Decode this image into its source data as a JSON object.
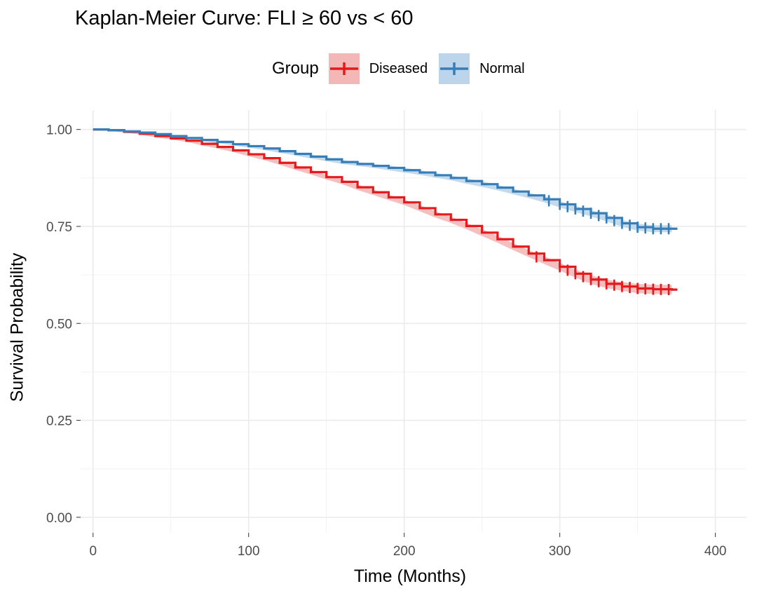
{
  "title": "Kaplan-Meier Curve: FLI ≥ 60 vs < 60",
  "legend": {
    "title": "Group",
    "items": [
      {
        "label": "Diseased",
        "color": "#E41A1C",
        "fill": "#F4B7B8"
      },
      {
        "label": "Normal",
        "color": "#377EB8",
        "fill": "#BDD5EA"
      }
    ]
  },
  "chart_data": {
    "type": "line",
    "subtype": "kaplan-meier step curve with confidence band",
    "xlabel": "Time (Months)",
    "ylabel": "Survival Probability",
    "xlim": [
      -8,
      420
    ],
    "ylim": [
      -0.04,
      1.05
    ],
    "x_ticks": [
      0,
      100,
      200,
      300,
      400
    ],
    "y_ticks": [
      0.0,
      0.25,
      0.5,
      0.75,
      1.0
    ],
    "x_tick_labels": [
      "0",
      "100",
      "200",
      "300",
      "400"
    ],
    "y_tick_labels": [
      "0.00",
      "0.25",
      "0.50",
      "0.75",
      "1.00"
    ],
    "grid": true,
    "legend_position": "top",
    "series": [
      {
        "name": "Diseased",
        "color": "#E41A1C",
        "x": [
          0,
          10,
          20,
          30,
          40,
          50,
          60,
          70,
          80,
          90,
          100,
          110,
          120,
          130,
          140,
          150,
          160,
          170,
          180,
          190,
          200,
          210,
          220,
          230,
          240,
          250,
          260,
          270,
          280,
          290,
          300,
          310,
          320,
          330,
          340,
          350,
          360,
          372
        ],
        "y": [
          1.0,
          0.998,
          0.994,
          0.989,
          0.983,
          0.977,
          0.971,
          0.963,
          0.955,
          0.946,
          0.936,
          0.926,
          0.914,
          0.902,
          0.89,
          0.877,
          0.865,
          0.851,
          0.838,
          0.825,
          0.812,
          0.797,
          0.781,
          0.767,
          0.751,
          0.734,
          0.717,
          0.698,
          0.68,
          0.663,
          0.646,
          0.628,
          0.613,
          0.602,
          0.595,
          0.59,
          0.588,
          0.587
        ],
        "ci_halfwidth": [
          0,
          0.001,
          0.002,
          0.002,
          0.003,
          0.003,
          0.003,
          0.004,
          0.004,
          0.004,
          0.005,
          0.005,
          0.005,
          0.006,
          0.006,
          0.006,
          0.006,
          0.007,
          0.007,
          0.007,
          0.007,
          0.008,
          0.008,
          0.008,
          0.008,
          0.009,
          0.009,
          0.009,
          0.009,
          0.01,
          0.01,
          0.01,
          0.011,
          0.011,
          0.011,
          0.012,
          0.012,
          0.012
        ],
        "censor_x": [
          285,
          300,
          305,
          310,
          315,
          320,
          325,
          330,
          335,
          340,
          345,
          350,
          355,
          360,
          365,
          370
        ]
      },
      {
        "name": "Normal",
        "color": "#377EB8",
        "x": [
          0,
          10,
          20,
          30,
          40,
          50,
          60,
          70,
          80,
          90,
          100,
          110,
          120,
          130,
          140,
          150,
          160,
          170,
          180,
          190,
          200,
          210,
          220,
          230,
          240,
          250,
          260,
          270,
          280,
          290,
          300,
          310,
          320,
          330,
          340,
          350,
          360,
          372
        ],
        "y": [
          1.0,
          0.998,
          0.995,
          0.992,
          0.988,
          0.983,
          0.978,
          0.973,
          0.968,
          0.962,
          0.957,
          0.951,
          0.944,
          0.937,
          0.93,
          0.923,
          0.916,
          0.911,
          0.906,
          0.901,
          0.895,
          0.889,
          0.882,
          0.875,
          0.867,
          0.859,
          0.85,
          0.84,
          0.83,
          0.82,
          0.807,
          0.795,
          0.784,
          0.772,
          0.758,
          0.748,
          0.744,
          0.744
        ],
        "ci_halfwidth": [
          0,
          0.001,
          0.001,
          0.002,
          0.002,
          0.002,
          0.003,
          0.003,
          0.003,
          0.003,
          0.004,
          0.004,
          0.004,
          0.004,
          0.005,
          0.005,
          0.005,
          0.005,
          0.005,
          0.006,
          0.006,
          0.006,
          0.006,
          0.006,
          0.007,
          0.007,
          0.007,
          0.007,
          0.007,
          0.008,
          0.008,
          0.008,
          0.008,
          0.009,
          0.009,
          0.009,
          0.009,
          0.009
        ],
        "censor_x": [
          293,
          300,
          305,
          310,
          315,
          320,
          325,
          330,
          335,
          340,
          345,
          350,
          355,
          360,
          365,
          370
        ]
      }
    ]
  }
}
